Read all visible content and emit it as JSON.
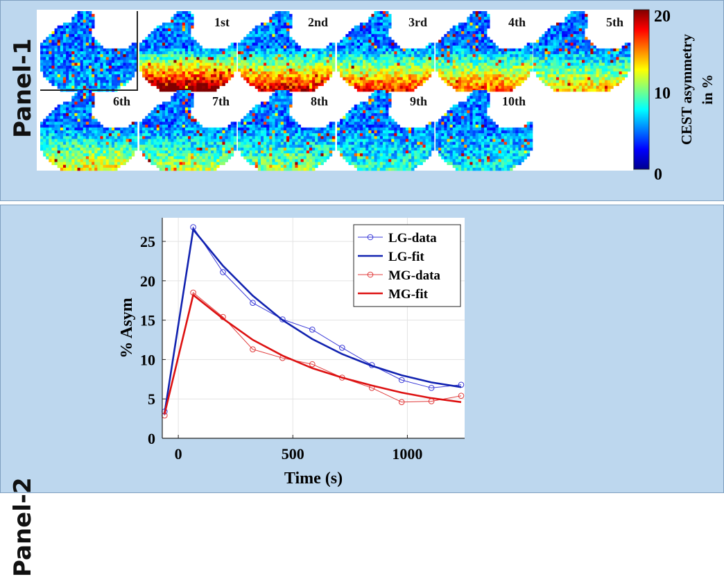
{
  "panel1": {
    "label": "Panel-1",
    "images": [
      {
        "label": "",
        "kind": "baseline"
      },
      {
        "label": "1st",
        "level": 0.95
      },
      {
        "label": "2nd",
        "level": 0.8
      },
      {
        "label": "3rd",
        "level": 0.7
      },
      {
        "label": "4th",
        "level": 0.65
      },
      {
        "label": "5th",
        "level": 0.5
      },
      {
        "label": "6th",
        "level": 0.45
      },
      {
        "label": "7th",
        "level": 0.35
      },
      {
        "label": "8th",
        "level": 0.3
      },
      {
        "label": "9th",
        "level": 0.2
      },
      {
        "label": "10th",
        "level": 0.15
      }
    ],
    "colorbar": {
      "label_line1": "CEST asymmetry",
      "label_line2": "in %",
      "ticks": [
        "20",
        "10",
        "0"
      ],
      "min": 0,
      "max": 20
    }
  },
  "panel2": {
    "label": "Panel-2"
  },
  "chart_data": {
    "type": "line",
    "title": "",
    "xlabel": "Time (s)",
    "ylabel": "% Asym",
    "xlim": [
      -70,
      1250
    ],
    "ylim": [
      0,
      28
    ],
    "xticks": [
      0,
      500,
      1000
    ],
    "yticks": [
      0,
      5,
      10,
      15,
      20,
      25
    ],
    "legend_position": "top-right",
    "series": [
      {
        "name": "LG-data",
        "style": "line-marker",
        "color": "#3a3ad8",
        "x": [
          -60,
          65,
          195,
          325,
          455,
          585,
          715,
          845,
          975,
          1105,
          1235
        ],
        "y": [
          3.4,
          26.8,
          21.1,
          17.2,
          15.1,
          13.8,
          11.5,
          9.3,
          7.4,
          6.4,
          6.8
        ]
      },
      {
        "name": "LG-fit",
        "style": "line",
        "color": "#1122b0",
        "x": [
          -60,
          65,
          195,
          325,
          455,
          585,
          715,
          845,
          975,
          1105,
          1235
        ],
        "y": [
          3.2,
          26.5,
          21.9,
          18.1,
          15.0,
          12.6,
          10.7,
          9.2,
          8.0,
          7.1,
          6.5
        ]
      },
      {
        "name": "MG-data",
        "style": "line-marker",
        "color": "#e03a3a",
        "x": [
          -60,
          65,
          195,
          325,
          455,
          585,
          715,
          845,
          975,
          1105,
          1235
        ],
        "y": [
          2.9,
          18.5,
          15.4,
          11.3,
          10.2,
          9.4,
          7.7,
          6.4,
          4.6,
          4.7,
          5.4
        ]
      },
      {
        "name": "MG-fit",
        "style": "line",
        "color": "#dd1111",
        "x": [
          -60,
          65,
          195,
          325,
          455,
          585,
          715,
          845,
          975,
          1105,
          1235
        ],
        "y": [
          3.1,
          18.2,
          15.2,
          12.5,
          10.5,
          8.9,
          7.7,
          6.7,
          5.8,
          5.1,
          4.6
        ]
      }
    ]
  }
}
